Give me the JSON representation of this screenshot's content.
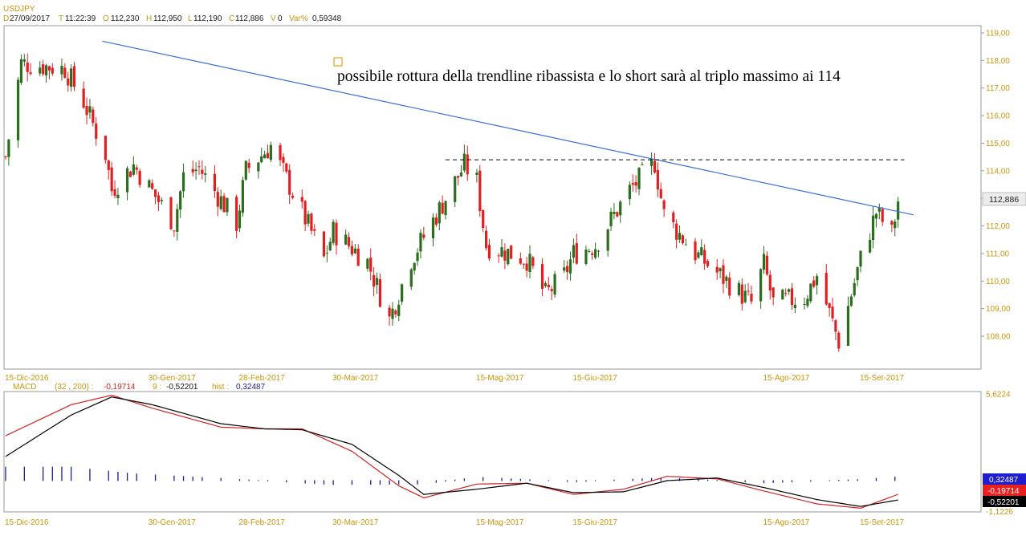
{
  "header": {
    "symbol": "USDJPY",
    "date_key": "D",
    "date": "27/09/2017",
    "time_key": "T",
    "time": "11:22:39",
    "open_key": "O",
    "open": "112,230",
    "high_key": "H",
    "high": "112,950",
    "low_key": "L",
    "low": "112,190",
    "close_key": "C",
    "close": "112,886",
    "volume_key": "V",
    "volume": "0",
    "var_key": "Var%",
    "var": "0,59348"
  },
  "annotation": "possibile rottura della trendline ribassista e lo short sarà al triplo massimo ai 114",
  "price_badge": "112,886",
  "macd_header": {
    "name": "MACD",
    "params": "(32 , 200) :",
    "macd_value": "-0,19714",
    "signal_key": "9 :",
    "signal_value": "-0,52201",
    "hist_key": "hist :",
    "hist_value": "0,32487"
  },
  "macd_badges": {
    "hist": "0,32487",
    "macd": "-0,19714",
    "signal": "-0,52201"
  },
  "colors": {
    "bull": "#2a6e1e",
    "bear": "#e02020",
    "trend": "#3a6fd8",
    "hist": "#1a1a9a",
    "gold": "#c8960a",
    "badge_bg": "#1e1ed0",
    "macd_line": "#d42020",
    "signal_line": "#000000"
  },
  "chart_data": [
    {
      "type": "candlestick",
      "title": "USDJPY",
      "x_ticks": [
        "15-Dic-2016",
        "30-Gen-2017",
        "28-Feb-2017",
        "30-Mar-2017",
        "15-Mag-2017",
        "15-Giu-2017",
        "15-Ago-2017",
        "15-Set-2017"
      ],
      "y_ticks": [
        "119,00",
        "118,00",
        "117,00",
        "116,00",
        "115,00",
        "114,00",
        "113,00",
        "112,00",
        "111,00",
        "110,00",
        "109,00",
        "108,00"
      ],
      "ylim": [
        107.0,
        119.1
      ],
      "anchors": [
        {
          "date": "15-Dic-2016",
          "close": 114.5
        },
        {
          "date": "20-Dic-2016",
          "close": 117.9
        },
        {
          "date": "03-Gen-2017",
          "close": 117.7
        },
        {
          "date": "09-Gen-2017",
          "close": 116.5
        },
        {
          "date": "16-Gen-2017",
          "close": 114.6
        },
        {
          "date": "18-Gen-2017",
          "close": 113.3
        },
        {
          "date": "25-Gen-2017",
          "close": 114.2
        },
        {
          "date": "07-Feb-2017",
          "close": 112.1
        },
        {
          "date": "10-Feb-2017",
          "close": 113.8
        },
        {
          "date": "15-Feb-2017",
          "close": 114.1
        },
        {
          "date": "27-Feb-2017",
          "close": 112.1
        },
        {
          "date": "02-Mar-2017",
          "close": 114.0
        },
        {
          "date": "10-Mar-2017",
          "close": 114.9
        },
        {
          "date": "20-Mar-2017",
          "close": 112.5
        },
        {
          "date": "27-Mar-2017",
          "close": 110.8
        },
        {
          "date": "30-Mar-2017",
          "close": 111.8
        },
        {
          "date": "10-Apr-2017",
          "close": 110.7
        },
        {
          "date": "17-Apr-2017",
          "close": 108.6
        },
        {
          "date": "24-Apr-2017",
          "close": 110.8
        },
        {
          "date": "04-Mag-2017",
          "close": 112.8
        },
        {
          "date": "11-Mag-2017",
          "close": 114.2
        },
        {
          "date": "15-Mag-2017",
          "close": 113.6
        },
        {
          "date": "18-Mag-2017",
          "close": 111.3
        },
        {
          "date": "31-Mag-2017",
          "close": 110.8
        },
        {
          "date": "06-Giu-2017",
          "close": 109.5
        },
        {
          "date": "12-Giu-2017",
          "close": 110.2
        },
        {
          "date": "15-Giu-2017",
          "close": 111.0
        },
        {
          "date": "22-Giu-2017",
          "close": 111.3
        },
        {
          "date": "03-Lug-2017",
          "close": 113.3
        },
        {
          "date": "11-Lug-2017",
          "close": 114.3
        },
        {
          "date": "14-Lug-2017",
          "close": 112.4
        },
        {
          "date": "24-Lug-2017",
          "close": 111.0
        },
        {
          "date": "31-Lug-2017",
          "close": 110.3
        },
        {
          "date": "11-Ago-2017",
          "close": 109.2
        },
        {
          "date": "15-Ago-2017",
          "close": 110.6
        },
        {
          "date": "18-Ago-2017",
          "close": 109.2
        },
        {
          "date": "28-Ago-2017",
          "close": 109.4
        },
        {
          "date": "01-Set-2017",
          "close": 110.2
        },
        {
          "date": "08-Set-2017",
          "close": 107.8
        },
        {
          "date": "15-Set-2017",
          "close": 110.8
        },
        {
          "date": "20-Set-2017",
          "close": 112.5
        },
        {
          "date": "25-Set-2017",
          "close": 111.7
        },
        {
          "date": "27-Set-2017",
          "close": 112.886
        }
      ],
      "trendline": [
        {
          "date": "15-Gen-2017",
          "value": 118.7
        },
        {
          "date": "02-Ott-2017",
          "value": 112.4
        }
      ],
      "resistance": {
        "value": 114.4,
        "from": "05-Mag-2017",
        "to": "29-Set-2017"
      },
      "last_close": 112.886
    },
    {
      "type": "line",
      "title": "MACD",
      "x_ticks": [
        "15-Dic-2016",
        "30-Gen-2017",
        "28-Feb-2017",
        "30-Mar-2017",
        "15-Mag-2017",
        "15-Giu-2017",
        "15-Ago-2017",
        "15-Set-2017"
      ],
      "y_ticks": [
        "5,6224",
        "-1,1226"
      ],
      "ylim": [
        -1.1226,
        5.6224
      ],
      "macd_line": [
        {
          "date": "15-Dic-2016",
          "value": 3.2
        },
        {
          "date": "05-Gen-2017",
          "value": 5.0
        },
        {
          "date": "18-Gen-2017",
          "value": 5.55
        },
        {
          "date": "31-Gen-2017",
          "value": 4.8
        },
        {
          "date": "22-Feb-2017",
          "value": 3.7
        },
        {
          "date": "08-Mar-2017",
          "value": 3.6
        },
        {
          "date": "20-Mar-2017",
          "value": 3.6
        },
        {
          "date": "05-Apr-2017",
          "value": 2.3
        },
        {
          "date": "20-Apr-2017",
          "value": 0.3
        },
        {
          "date": "28-Apr-2017",
          "value": -0.4
        },
        {
          "date": "15-Mag-2017",
          "value": 0.4
        },
        {
          "date": "31-Mag-2017",
          "value": 0.45
        },
        {
          "date": "15-Giu-2017",
          "value": -0.2
        },
        {
          "date": "01-Lug-2017",
          "value": 0.1
        },
        {
          "date": "15-Lug-2017",
          "value": 0.85
        },
        {
          "date": "31-Lug-2017",
          "value": 0.7
        },
        {
          "date": "15-Ago-2017",
          "value": 0.0
        },
        {
          "date": "01-Set-2017",
          "value": -0.75
        },
        {
          "date": "15-Set-2017",
          "value": -1.0
        },
        {
          "date": "27-Set-2017",
          "value": -0.197
        }
      ],
      "signal_line": [
        {
          "date": "15-Dic-2016",
          "value": 2.0
        },
        {
          "date": "05-Gen-2017",
          "value": 4.4
        },
        {
          "date": "18-Gen-2017",
          "value": 5.45
        },
        {
          "date": "31-Gen-2017",
          "value": 5.0
        },
        {
          "date": "22-Feb-2017",
          "value": 3.9
        },
        {
          "date": "08-Mar-2017",
          "value": 3.6
        },
        {
          "date": "20-Mar-2017",
          "value": 3.55
        },
        {
          "date": "05-Apr-2017",
          "value": 2.7
        },
        {
          "date": "20-Apr-2017",
          "value": 0.9
        },
        {
          "date": "28-Apr-2017",
          "value": -0.2
        },
        {
          "date": "15-Mag-2017",
          "value": 0.1
        },
        {
          "date": "31-Mag-2017",
          "value": 0.45
        },
        {
          "date": "15-Giu-2017",
          "value": -0.1
        },
        {
          "date": "01-Lug-2017",
          "value": -0.05
        },
        {
          "date": "15-Lug-2017",
          "value": 0.6
        },
        {
          "date": "31-Lug-2017",
          "value": 0.75
        },
        {
          "date": "15-Ago-2017",
          "value": 0.2
        },
        {
          "date": "01-Set-2017",
          "value": -0.5
        },
        {
          "date": "15-Set-2017",
          "value": -0.9
        },
        {
          "date": "27-Set-2017",
          "value": -0.522
        }
      ],
      "histogram": [
        {
          "date": "15-Dic-2016",
          "value": 1.2
        },
        {
          "date": "05-Gen-2017",
          "value": 1.2
        },
        {
          "date": "25-Gen-2017",
          "value": 0.6
        },
        {
          "date": "28-Feb-2017",
          "value": 0.1
        },
        {
          "date": "30-Mar-2017",
          "value": -0.35
        },
        {
          "date": "28-Apr-2017",
          "value": -0.3
        },
        {
          "date": "15-Mag-2017",
          "value": 0.3
        },
        {
          "date": "15-Giu-2017",
          "value": -0.1
        },
        {
          "date": "15-Lug-2017",
          "value": 0.25
        },
        {
          "date": "15-Ago-2017",
          "value": -0.2
        },
        {
          "date": "15-Set-2017",
          "value": 0.1
        },
        {
          "date": "27-Set-2017",
          "value": 0.325
        }
      ]
    }
  ]
}
